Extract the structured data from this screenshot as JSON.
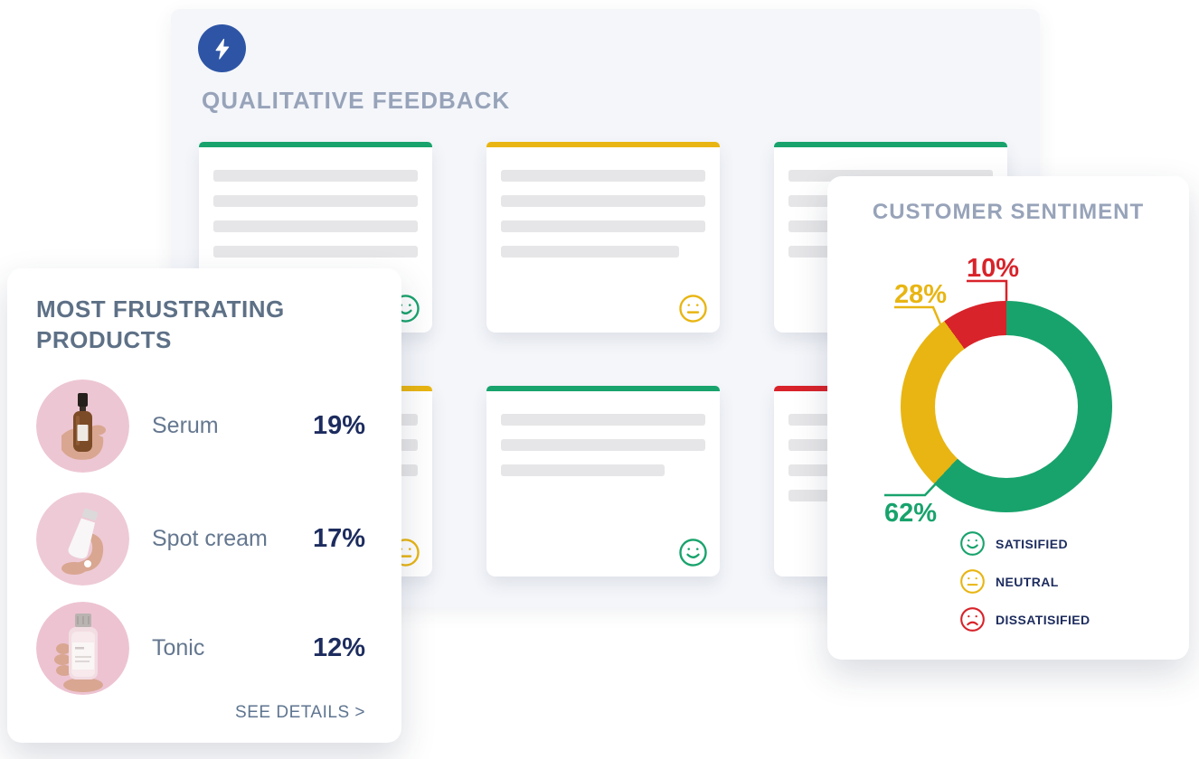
{
  "colors": {
    "page_bg": "#ffffff",
    "panel_bg": "#f4f6fa",
    "panel_icon_bg": "#2e55a5",
    "muted_title": "#97a3b9",
    "slate_title": "#5d7086",
    "product_name": "#64778f",
    "navy_value": "#1d2c5e",
    "link": "#5e7590",
    "placeholder_line": "#e6e6e8",
    "green": "#18a36c",
    "yellow": "#e8b512",
    "red": "#d8232a",
    "photo_pink": "#edc6d3"
  },
  "feedback_panel": {
    "title": "QUALITATIVE FEEDBACK",
    "icon": "lightning-bolt",
    "cards": [
      {
        "face": "happy",
        "accent": "#18a36c",
        "line_widths": [
          100,
          100,
          100,
          100
        ]
      },
      {
        "face": "neutral",
        "accent": "#e8b512",
        "line_widths": [
          100,
          100,
          100,
          87
        ]
      },
      {
        "face": "happy",
        "accent": "#18a36c",
        "line_widths": [
          100,
          100,
          100,
          100
        ]
      },
      {
        "face": "neutral",
        "accent": "#e8b512",
        "line_widths": [
          100,
          100,
          100,
          60
        ]
      },
      {
        "face": "happy",
        "accent": "#18a36c",
        "line_widths": [
          100,
          100,
          80
        ]
      },
      {
        "face": "sad",
        "accent": "#d8232a",
        "line_widths": [
          100,
          100,
          100,
          50
        ]
      }
    ]
  },
  "products_card": {
    "title_line1": "MOST FRUSTRATING",
    "title_line2": "PRODUCTS",
    "items": [
      {
        "name": "Serum",
        "value": "19%",
        "image": "serum-bottle-photo"
      },
      {
        "name": "Spot cream",
        "value": "17%",
        "image": "cream-tube-photo"
      },
      {
        "name": "Tonic",
        "value": "12%",
        "image": "tonic-bottle-photo"
      }
    ],
    "details_link": "SEE DETAILS >"
  },
  "sentiment_card": {
    "title": "CUSTOMER SENTIMENT",
    "legend": [
      {
        "key": "satisfied",
        "label": "SATISIFIED",
        "face": "happy",
        "color": "#18a36c"
      },
      {
        "key": "neutral",
        "label": "NEUTRAL",
        "face": "neutral",
        "color": "#e8b512"
      },
      {
        "key": "dissatisfied",
        "label": "DISSATISIFIED",
        "face": "sad",
        "color": "#d8232a"
      }
    ]
  },
  "chart_data": {
    "type": "pie",
    "subtype": "donut",
    "title": "CUSTOMER SENTIMENT",
    "direction": "clockwise",
    "start_angle_deg": 0,
    "legend_position": "bottom",
    "series": [
      {
        "key": "satisfied",
        "name": "Satisfied",
        "value": 62,
        "label": "62%",
        "color": "#18a36c"
      },
      {
        "key": "neutral",
        "name": "Neutral",
        "value": 28,
        "label": "28%",
        "color": "#e8b512"
      },
      {
        "key": "dissatisfied",
        "name": "Dissatisfied",
        "value": 10,
        "label": "10%",
        "color": "#d8232a"
      }
    ]
  }
}
